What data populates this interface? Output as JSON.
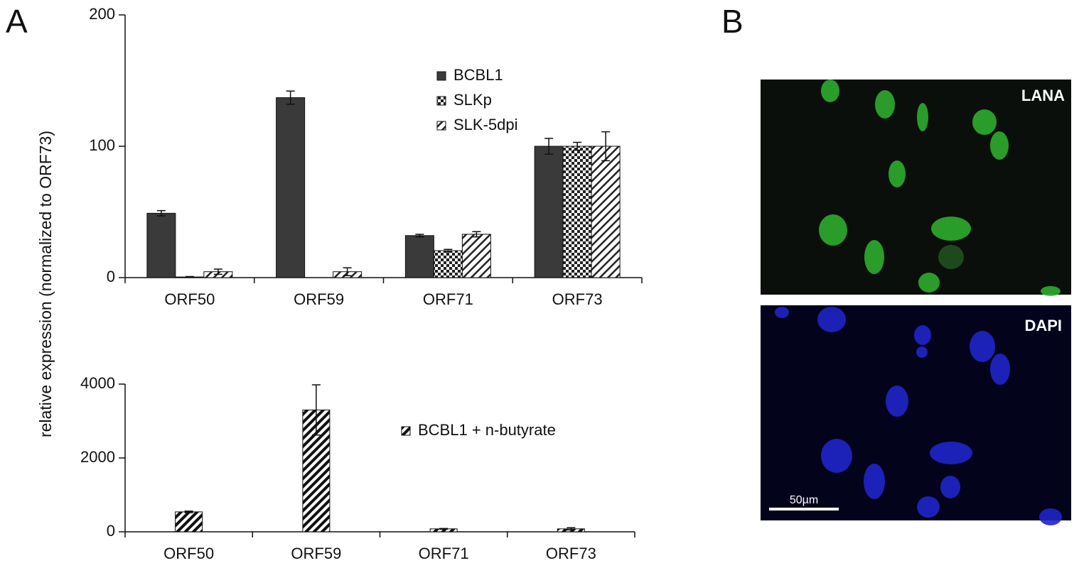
{
  "panel_a_label": "A",
  "panel_b_label": "B",
  "shared_ylabel": "relative expression (normalized to ORF73)",
  "chart_data": [
    {
      "type": "bar",
      "categories": [
        "ORF50",
        "ORF59",
        "ORF71",
        "ORF73"
      ],
      "ylim": [
        0,
        200
      ],
      "yticks": [
        0,
        100,
        200
      ],
      "series": [
        {
          "name": "BCBL1",
          "color": "#3a3a3a",
          "pattern": "solid",
          "values": [
            49,
            137,
            32,
            100
          ],
          "errors": [
            2,
            5,
            1,
            6
          ]
        },
        {
          "name": "SLKp",
          "color": "#222222",
          "pattern": "checker",
          "values": [
            0.5,
            null,
            20.5,
            100
          ],
          "errors": [
            0.3,
            null,
            1,
            3
          ]
        },
        {
          "name": "SLK-5dpi",
          "color": "#222222",
          "pattern": "hatch-light",
          "values": [
            4.5,
            4.5,
            33,
            100
          ],
          "errors": [
            2,
            3,
            2,
            11
          ]
        }
      ]
    },
    {
      "type": "bar",
      "categories": [
        "ORF50",
        "ORF59",
        "ORF71",
        "ORF73"
      ],
      "ylim": [
        0,
        4000
      ],
      "yticks": [
        0,
        2000,
        4000
      ],
      "series": [
        {
          "name": "BCBL1 + n-butyrate",
          "color": "#111111",
          "pattern": "hatch-dense",
          "values": [
            540,
            3300,
            80,
            80
          ],
          "errors": [
            20,
            680,
            10,
            30
          ]
        }
      ]
    }
  ],
  "images": [
    {
      "label": "LANA"
    },
    {
      "label": "DAPI",
      "scale_bar": "50µm"
    }
  ]
}
